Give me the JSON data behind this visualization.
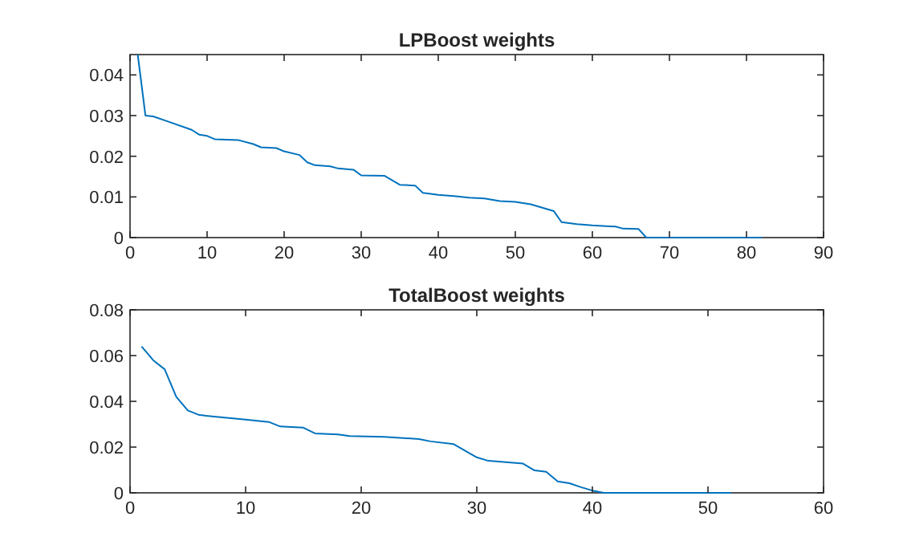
{
  "chart_data": [
    {
      "type": "line",
      "title": "LPBoost weights",
      "x": [
        1,
        2,
        3,
        5,
        8,
        9,
        10,
        11,
        14,
        16,
        17,
        19,
        20,
        22,
        23,
        24,
        26,
        27,
        29,
        30,
        33,
        35,
        37,
        38,
        40,
        42,
        44,
        46,
        48,
        50,
        52,
        55,
        56,
        58,
        60,
        63,
        64,
        66,
        67,
        82
      ],
      "series": [
        {
          "color": "#0072bd",
          "values": [
            0.045,
            0.03,
            0.0298,
            0.0285,
            0.0265,
            0.0253,
            0.025,
            0.0242,
            0.024,
            0.023,
            0.0222,
            0.022,
            0.0212,
            0.0203,
            0.0185,
            0.0178,
            0.0175,
            0.017,
            0.0167,
            0.0153,
            0.0152,
            0.013,
            0.0128,
            0.011,
            0.0105,
            0.0102,
            0.0098,
            0.0096,
            0.009,
            0.0088,
            0.0082,
            0.0065,
            0.0038,
            0.0033,
            0.003,
            0.0027,
            0.0022,
            0.0021,
            0,
            0
          ]
        }
      ],
      "xlim": [
        0,
        90
      ],
      "xticks": [
        0,
        10,
        20,
        30,
        40,
        50,
        60,
        70,
        80,
        90
      ],
      "ylim": [
        0,
        0.045
      ],
      "yticks": [
        0,
        0.01,
        0.02,
        0.03,
        0.04
      ]
    },
    {
      "type": "line",
      "title": "TotalBoost weights",
      "x": [
        1,
        2,
        3,
        4,
        5,
        6,
        8,
        10,
        12,
        13,
        15,
        16,
        18,
        19,
        22,
        25,
        26,
        28,
        30,
        31,
        34,
        35,
        36,
        37,
        38,
        39,
        40,
        41,
        52
      ],
      "series": [
        {
          "color": "#0072bd",
          "values": [
            0.064,
            0.058,
            0.054,
            0.042,
            0.036,
            0.034,
            0.033,
            0.032,
            0.031,
            0.029,
            0.0285,
            0.026,
            0.0255,
            0.0248,
            0.0245,
            0.0235,
            0.0225,
            0.0213,
            0.0155,
            0.014,
            0.0128,
            0.0098,
            0.0092,
            0.005,
            0.0042,
            0.0025,
            0.001,
            0,
            0
          ]
        }
      ],
      "xlim": [
        0,
        60
      ],
      "xticks": [
        0,
        10,
        20,
        30,
        40,
        50,
        60
      ],
      "ylim": [
        0,
        0.08
      ],
      "yticks": [
        0,
        0.02,
        0.04,
        0.06,
        0.08
      ]
    }
  ]
}
